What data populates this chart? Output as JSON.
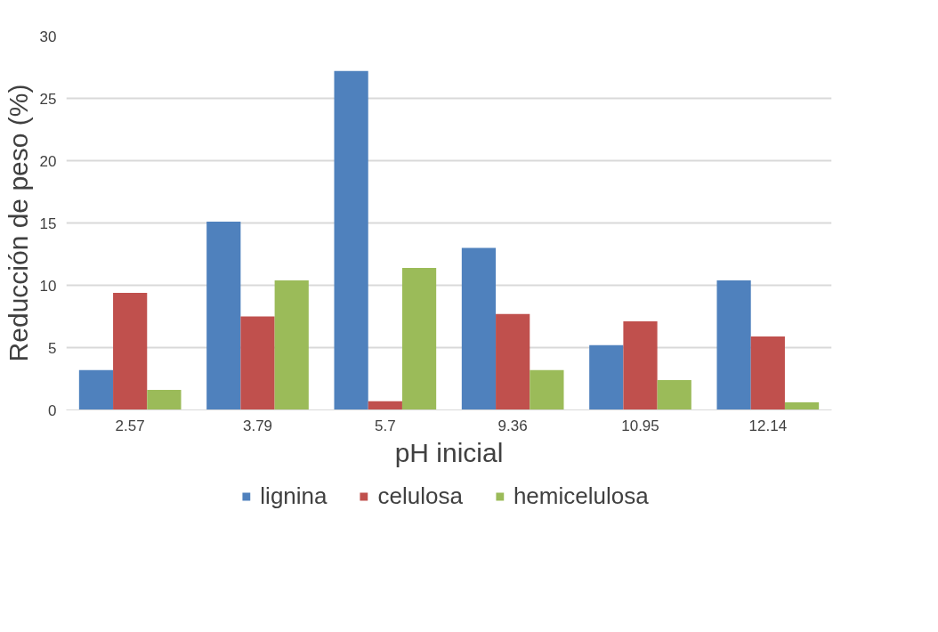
{
  "chart_data": {
    "type": "bar",
    "xlabel": "pH inicial",
    "ylabel": "Reducción de peso (%)",
    "categories": [
      "2.57",
      "3.79",
      "5.7",
      "9.36",
      "10.95",
      "12.14"
    ],
    "series": [
      {
        "name": "lignina",
        "color": "#4f81bd",
        "values": [
          3.2,
          15.1,
          27.2,
          13.0,
          5.2,
          10.4
        ]
      },
      {
        "name": "celulosa",
        "color": "#c0504d",
        "values": [
          9.4,
          7.5,
          0.7,
          7.7,
          7.1,
          5.9
        ]
      },
      {
        "name": "hemicelulosa",
        "color": "#9bbb59",
        "values": [
          1.6,
          10.4,
          11.4,
          3.2,
          2.4,
          0.6
        ]
      }
    ],
    "ylim": [
      0,
      30
    ],
    "yticks": [
      0,
      5,
      10,
      15,
      20,
      25,
      30
    ],
    "grid": "y",
    "legend": "bottom"
  }
}
